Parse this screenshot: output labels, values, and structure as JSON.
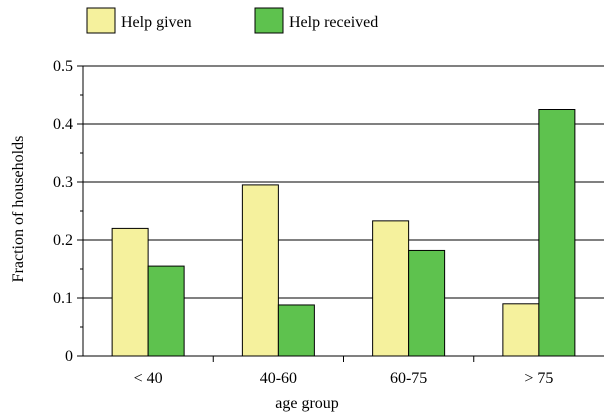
{
  "chart_data": {
    "type": "bar",
    "categories": [
      "< 40",
      "40-60",
      "60-75",
      "> 75"
    ],
    "series": [
      {
        "name": "Help given",
        "values": [
          0.22,
          0.295,
          0.233,
          0.09
        ],
        "color": "#f5f19d"
      },
      {
        "name": "Help received",
        "values": [
          0.155,
          0.088,
          0.182,
          0.425
        ],
        "color": "#5ec24e"
      }
    ],
    "xlabel": "age group",
    "ylabel": "Fraction of households",
    "ylim": [
      0,
      0.5
    ],
    "yticks": [
      "0",
      "0.1",
      "0.2",
      "0.3",
      "0.4",
      "0.5"
    ],
    "grid": true,
    "legend_position": "top-left"
  }
}
